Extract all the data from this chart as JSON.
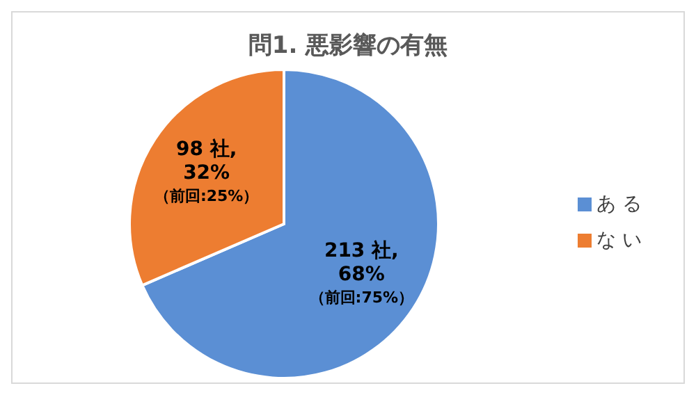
{
  "chart_data": {
    "type": "pie",
    "title": "問1. 悪影響の有無",
    "categories": [
      "あ る",
      "な い"
    ],
    "values": [
      213,
      98
    ],
    "colors": [
      "#5b8fd4",
      "#ed7d31"
    ],
    "value_labels": [
      "213 社,\n68%\n（前回:75%）",
      "98 社,\n32%\n（前回:25%）"
    ],
    "legend": "right"
  }
}
